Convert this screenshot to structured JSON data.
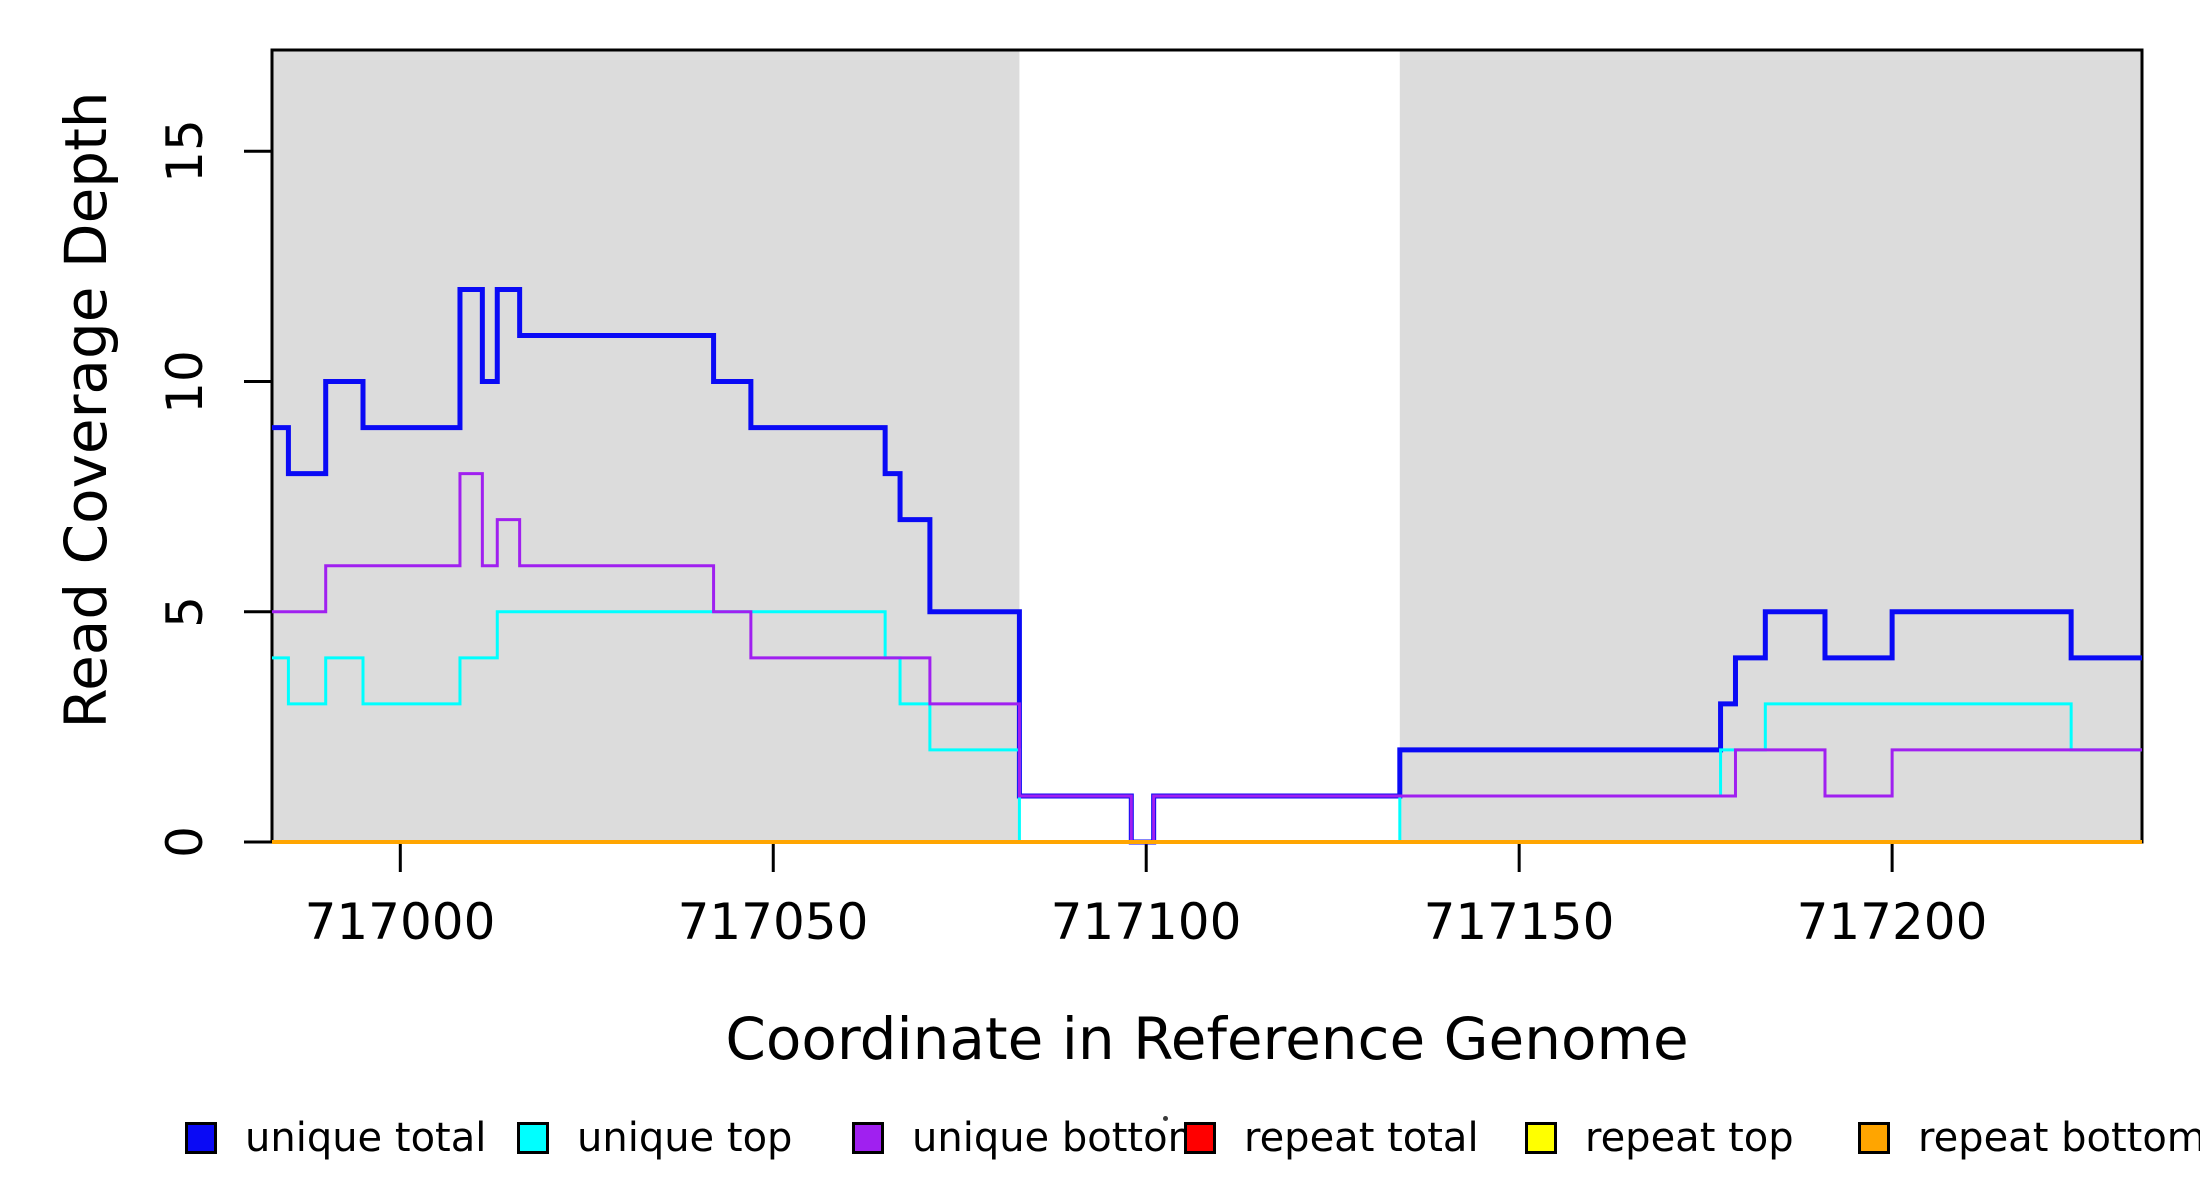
{
  "chart_data": {
    "type": "line",
    "subtype": "step",
    "title": "",
    "xlabel": "Coordinate in Reference Genome",
    "ylabel": "Read Coverage Depth",
    "xlim": [
      716982.8,
      717233.5
    ],
    "ylim": [
      0,
      17.2
    ],
    "x_ticks": [
      717000,
      717050,
      717100,
      717150,
      717200
    ],
    "y_ticks": [
      0,
      5,
      10,
      15
    ],
    "grid": false,
    "shade_color": "#DCDCDC",
    "shaded_regions": [
      [
        716982.8,
        717083
      ],
      [
        717134,
        717233.5
      ]
    ],
    "series": [
      {
        "name": "repeat total",
        "color": "#FF0000",
        "width": 3,
        "steps": [
          [
            716982.8,
            0
          ]
        ]
      },
      {
        "name": "repeat top",
        "color": "#FFFF00",
        "width": 3,
        "steps": [
          [
            716982.8,
            0
          ]
        ]
      },
      {
        "name": "unique total",
        "color": "#0A0AF5",
        "width": 5,
        "steps": [
          [
            716982.8,
            9
          ],
          [
            716985,
            8
          ],
          [
            716990,
            10
          ],
          [
            716995,
            9
          ],
          [
            717008,
            12
          ],
          [
            717011,
            10
          ],
          [
            717013,
            12
          ],
          [
            717016,
            11
          ],
          [
            717042,
            10
          ],
          [
            717047,
            9
          ],
          [
            717065,
            8
          ],
          [
            717067,
            7
          ],
          [
            717071,
            5
          ],
          [
            717083,
            1
          ],
          [
            717098,
            0
          ],
          [
            717101,
            1
          ],
          [
            717134,
            2
          ],
          [
            717177,
            3
          ],
          [
            717179,
            4
          ],
          [
            717183,
            5
          ],
          [
            717191,
            4
          ],
          [
            717200,
            5
          ],
          [
            717224,
            4
          ]
        ]
      },
      {
        "name": "unique top",
        "color": "#00FFFF",
        "width": 3,
        "steps": [
          [
            716982.8,
            4
          ],
          [
            716985,
            3
          ],
          [
            716990,
            4
          ],
          [
            716995,
            3
          ],
          [
            717008,
            4
          ],
          [
            717013,
            5
          ],
          [
            717065,
            4
          ],
          [
            717067,
            3
          ],
          [
            717071,
            2
          ],
          [
            717083,
            0
          ],
          [
            717134,
            1
          ],
          [
            717177,
            2
          ],
          [
            717183,
            3
          ],
          [
            717224,
            2
          ]
        ]
      },
      {
        "name": "unique bottom",
        "color": "#A020F0",
        "width": 3,
        "steps": [
          [
            716982.8,
            5
          ],
          [
            716990,
            6
          ],
          [
            717008,
            8
          ],
          [
            717011,
            6
          ],
          [
            717013,
            7
          ],
          [
            717016,
            6
          ],
          [
            717042,
            5
          ],
          [
            717047,
            4
          ],
          [
            717071,
            3
          ],
          [
            717083,
            1
          ],
          [
            717098,
            0
          ],
          [
            717101,
            1
          ],
          [
            717179,
            2
          ],
          [
            717191,
            1
          ],
          [
            717200,
            2
          ]
        ]
      },
      {
        "name": "repeat bottom",
        "color": "#FFA500",
        "width": 4,
        "steps": [
          [
            716982.8,
            0
          ]
        ]
      }
    ]
  },
  "axis": {
    "x_tick_labels": [
      "717000",
      "717050",
      "717100",
      "717150",
      "717200"
    ],
    "y_tick_labels": [
      "0",
      "5",
      "10",
      "15"
    ],
    "x_title": "Coordinate in Reference Genome",
    "y_title": "Read Coverage Depth"
  },
  "legend": {
    "items": [
      {
        "label": "unique total",
        "color": "#0A0AF5"
      },
      {
        "label": "unique top",
        "color": "#00FFFF"
      },
      {
        "label": "unique bottom",
        "color": "#A020F0"
      },
      {
        "label": "repeat total",
        "color": "#FF0000"
      },
      {
        "label": "repeat top",
        "color": "#FFFF00"
      },
      {
        "label": "repeat bottom",
        "color": "#FFA500"
      }
    ]
  }
}
